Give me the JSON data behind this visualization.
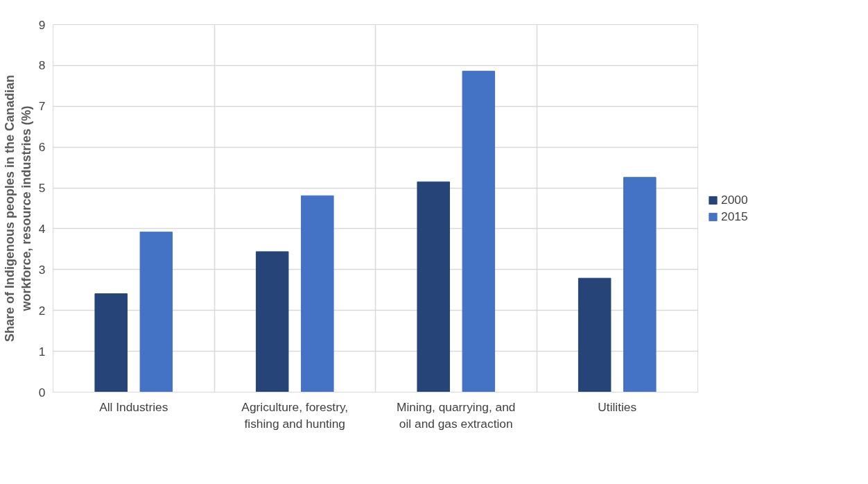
{
  "chart_data": {
    "type": "bar",
    "ylabel": "Share of Indigenous peoples in the Canadian workforce, resource industries (%)",
    "categories": [
      "All Industries",
      "Agriculture, forestry, fishing and hunting",
      "Mining, quarrying, and oil and gas extraction",
      "Utilities"
    ],
    "series": [
      {
        "name": "2000",
        "color": "#264478",
        "values": [
          2.41,
          3.44,
          5.15,
          2.79
        ]
      },
      {
        "name": "2015",
        "color": "#4472c4",
        "values": [
          3.92,
          4.81,
          7.86,
          5.26
        ]
      }
    ],
    "ylim": [
      0,
      9
    ],
    "yticks": [
      0,
      1,
      2,
      3,
      4,
      5,
      6,
      7,
      8,
      9
    ],
    "grid": true,
    "legend": "right"
  }
}
